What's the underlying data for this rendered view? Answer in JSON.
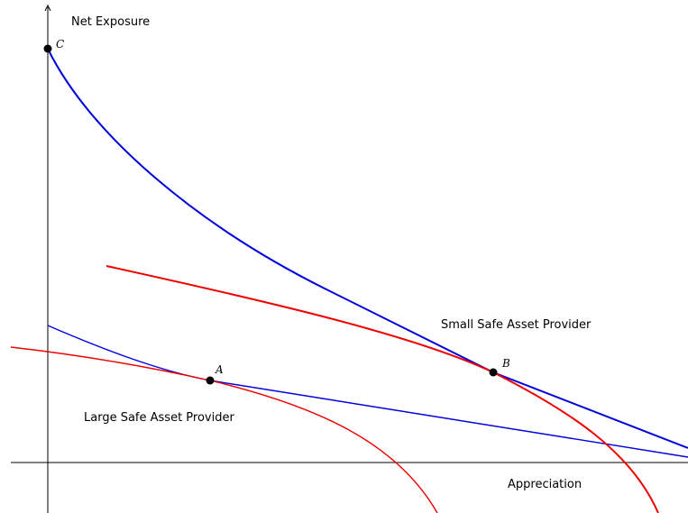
{
  "axes": {
    "y_label": "Net Exposure",
    "x_label": "Appreciation"
  },
  "curves": {
    "small_provider_label": "Small Safe Asset Provider",
    "large_provider_label": "Large Safe Asset Provider"
  },
  "points": {
    "a": "A",
    "b": "B",
    "c": "C"
  },
  "colors": {
    "blue": "#0000dd",
    "red": "#ee0000",
    "axis": "#000000"
  }
}
